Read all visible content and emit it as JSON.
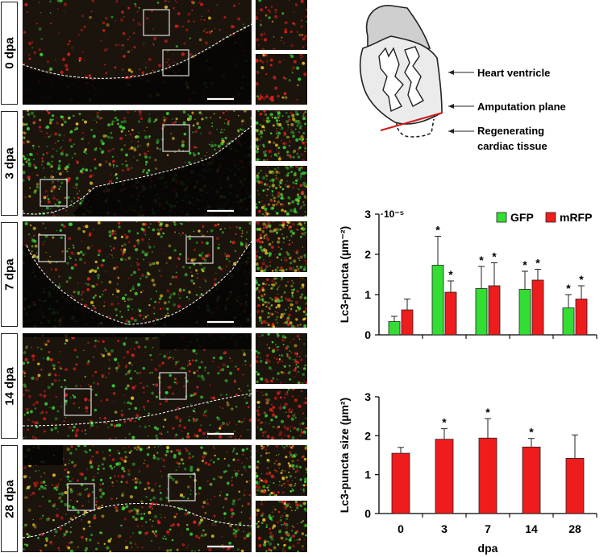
{
  "figure": {
    "rows": [
      {
        "label": "0 dpa"
      },
      {
        "label": "3 dpa"
      },
      {
        "label": "7 dpa"
      },
      {
        "label": "14 dpa"
      },
      {
        "label": "28 dpa"
      }
    ],
    "colors": {
      "green": "#3fd33a",
      "red": "#e0201c",
      "yellow": "#e8c22a",
      "boundary": "#ffffff"
    }
  },
  "diagram": {
    "labels": {
      "ventricle": "Heart ventricle",
      "amputation": "Amputation plane",
      "regen_line1": "Regenerating",
      "regen_line2": "cardiac tissue"
    }
  },
  "chart_data": [
    {
      "type": "bar",
      "categories": [
        "0",
        "3",
        "7",
        "14",
        "28"
      ],
      "ylabel": "Lc3-puncta (µm⁻²)",
      "y_multiplier": "·10⁻⁵",
      "ylim": [
        0,
        3
      ],
      "yticks": [
        "0",
        "1",
        "2",
        "3"
      ],
      "legend_position": "top-right",
      "series": [
        {
          "name": "GFP",
          "color": "#33dd33",
          "values": [
            0.33,
            1.73,
            1.15,
            1.13,
            0.67
          ],
          "errors": [
            0.13,
            0.72,
            0.55,
            0.45,
            0.33
          ],
          "significant": [
            false,
            true,
            true,
            true,
            true
          ]
        },
        {
          "name": "mRFP",
          "color": "#ee1c1c",
          "values": [
            0.62,
            1.06,
            1.22,
            1.36,
            0.89
          ],
          "errors": [
            0.27,
            0.28,
            0.57,
            0.27,
            0.33
          ],
          "significant": [
            false,
            true,
            true,
            true,
            true
          ]
        }
      ],
      "significance_marker": "*"
    },
    {
      "type": "bar",
      "categories": [
        "0",
        "3",
        "7",
        "14",
        "28"
      ],
      "xlabel": "dpa",
      "ylabel": "Lc3-puncta size (µm²)",
      "ylim": [
        0,
        3
      ],
      "yticks": [
        "0",
        "1",
        "2",
        "3"
      ],
      "series": [
        {
          "color": "#ee1c1c",
          "values": [
            1.55,
            1.91,
            1.94,
            1.71,
            1.42
          ],
          "errors": [
            0.15,
            0.27,
            0.5,
            0.22,
            0.6
          ],
          "significant": [
            false,
            true,
            true,
            true,
            false
          ]
        }
      ],
      "significance_marker": "*"
    }
  ]
}
